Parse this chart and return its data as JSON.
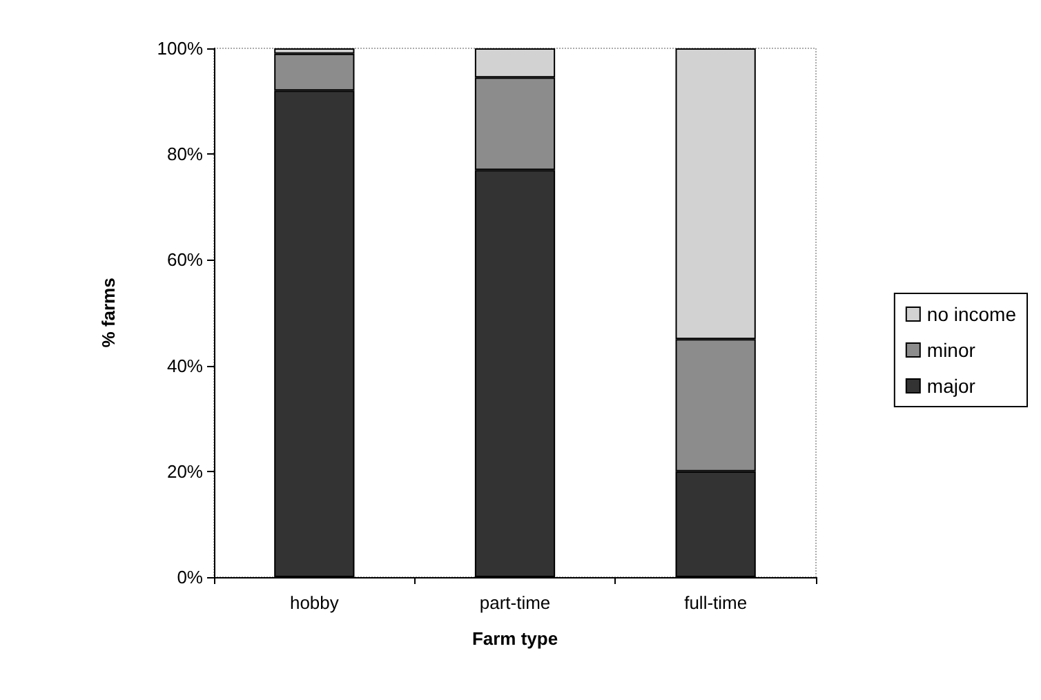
{
  "chart_data": {
    "type": "bar",
    "stacked": true,
    "xlabel": "Farm type",
    "ylabel": "% farms",
    "categories": [
      "hobby",
      "part-time",
      "full-time"
    ],
    "series": [
      {
        "name": "major",
        "color": "#333333",
        "values": [
          92,
          77,
          20
        ]
      },
      {
        "name": "minor",
        "color": "#8c8c8c",
        "values": [
          7,
          17.5,
          25
        ]
      },
      {
        "name": "no income",
        "color": "#d2d2d2",
        "values": [
          1,
          5.5,
          55
        ]
      }
    ],
    "ylim": [
      0,
      100
    ],
    "yticks": [
      {
        "value": 0,
        "label": "0%"
      },
      {
        "value": 20,
        "label": "20%"
      },
      {
        "value": 40,
        "label": "40%"
      },
      {
        "value": 60,
        "label": "60%"
      },
      {
        "value": 80,
        "label": "80%"
      },
      {
        "value": 100,
        "label": "100%"
      }
    ],
    "legend": "right",
    "grid": false
  }
}
